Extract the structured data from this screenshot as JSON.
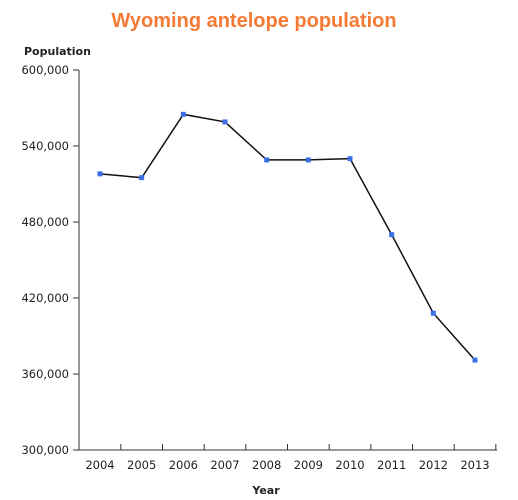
{
  "chart_data": {
    "type": "line",
    "title": "Wyoming antelope population",
    "xlabel": "Year",
    "ylabel": "Population",
    "x": [
      "2004",
      "2005",
      "2006",
      "2007",
      "2008",
      "2009",
      "2010",
      "2011",
      "2012",
      "2013"
    ],
    "values": [
      518000,
      515000,
      565000,
      559000,
      529000,
      529000,
      530000,
      470000,
      408000,
      371000
    ],
    "ylim": [
      300000,
      600000
    ],
    "yticks": [
      "300,000",
      "360,000",
      "420,000",
      "480,000",
      "540,000",
      "600,000"
    ],
    "ytick_values": [
      300000,
      360000,
      420000,
      480000,
      540000,
      600000
    ],
    "grid": false,
    "legend": "none",
    "colors": {
      "title": "#F47A35",
      "line": "#111111",
      "marker": "#3B6FE8",
      "axis": "#333333"
    }
  }
}
